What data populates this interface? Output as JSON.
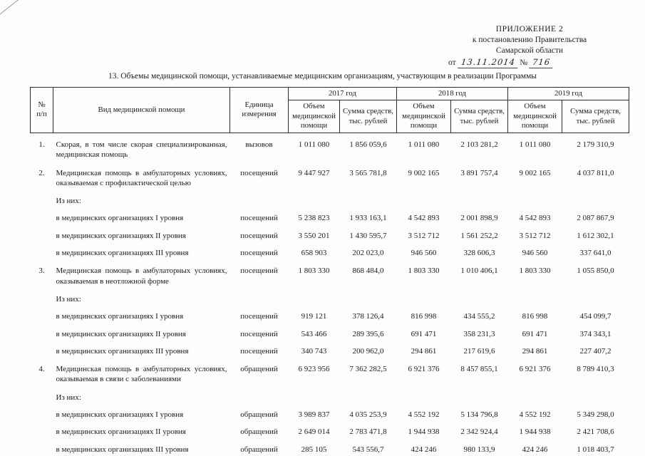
{
  "header": {
    "appendix": "ПРИЛОЖЕНИЕ 2",
    "line2": "к постановлению Правительства",
    "line3": "Самарской области",
    "from_label": "от",
    "date": "13.11.2014",
    "number_sign": "№",
    "number": "716"
  },
  "title": "13. Объемы медицинской помощи, устанавливаемые медицинским организациям, участвующим в реализации Программы",
  "table": {
    "columns": {
      "num": "№\nп/п",
      "type": "Вид медицинской помощи",
      "unit": "Единица измерения",
      "years": [
        "2017 год",
        "2018 год",
        "2019 год"
      ],
      "volume": "Объем медицинской помощи",
      "sum": "Сумма средств, тыс. рублей"
    },
    "rows": [
      {
        "kind": "main",
        "num": "1.",
        "name": "Скорая, в том числе скорая специализированная, медицинская помощь",
        "unit": "вызовов",
        "values": [
          "1 011 080",
          "1 856 059,6",
          "1 011 080",
          "2 103 281,2",
          "1 011 080",
          "2 179 310,9"
        ]
      },
      {
        "kind": "main",
        "num": "2.",
        "name": "Медицинская помощь в амбулаторных условиях, оказываемая с профилактической целью",
        "unit": "посещений",
        "values": [
          "9 447 927",
          "3 565 781,8",
          "9 002 165",
          "3 891 757,4",
          "9 002 165",
          "4 037 811,0"
        ]
      },
      {
        "kind": "label",
        "num": "",
        "name": "Из них:",
        "unit": "",
        "values": [
          "",
          "",
          "",
          "",
          "",
          ""
        ]
      },
      {
        "kind": "sub",
        "num": "",
        "name": "в медицинских организациях I уровня",
        "unit": "посещений",
        "values": [
          "5 238 823",
          "1 933 163,1",
          "4 542 893",
          "2 001 898,9",
          "4 542 893",
          "2 087 867,9"
        ]
      },
      {
        "kind": "sub",
        "num": "",
        "name": "в медицинских организациях II уровня",
        "unit": "посещений",
        "values": [
          "3 550 201",
          "1 430 595,7",
          "3 512 712",
          "1 561 252,2",
          "3 512 712",
          "1 612 302,1"
        ]
      },
      {
        "kind": "sub",
        "num": "",
        "name": "в медицинских организациях III уровня",
        "unit": "посещений",
        "values": [
          "658 903",
          "202 023,0",
          "946 560",
          "328 606,3",
          "946 560",
          "337 641,0"
        ]
      },
      {
        "kind": "main",
        "num": "3.",
        "name": "Медицинская помощь в амбулаторных условиях, оказываемая в неотложной форме",
        "unit": "посещений",
        "values": [
          "1 803 330",
          "868 484,0",
          "1 803 330",
          "1 010 406,1",
          "1 803 330",
          "1 055 850,0"
        ]
      },
      {
        "kind": "label",
        "num": "",
        "name": "Из них:",
        "unit": "",
        "values": [
          "",
          "",
          "",
          "",
          "",
          ""
        ]
      },
      {
        "kind": "sub",
        "num": "",
        "name": "в медицинских организациях I уровня",
        "unit": "посещений",
        "values": [
          "919 121",
          "378 126,4",
          "816 998",
          "434 555,2",
          "816 998",
          "454 099,7"
        ]
      },
      {
        "kind": "sub",
        "num": "",
        "name": "в медицинских организациях II уровня",
        "unit": "посещений",
        "values": [
          "543 466",
          "289 395,6",
          "691 471",
          "358 231,3",
          "691 471",
          "374 343,1"
        ]
      },
      {
        "kind": "sub",
        "num": "",
        "name": "в медицинских организациях III уровня",
        "unit": "посещений",
        "values": [
          "340 743",
          "200 962,0",
          "294 861",
          "217 619,6",
          "294 861",
          "227 407,2"
        ]
      },
      {
        "kind": "main",
        "num": "4.",
        "name": "Медицинская помощь в амбулаторных условиях, оказываемая в связи с заболеваниями",
        "unit": "обращений",
        "values": [
          "6 923 956",
          "7 362 282,5",
          "6 921 376",
          "8 457 855,1",
          "6 921 376",
          "8 789 410,3"
        ]
      },
      {
        "kind": "label",
        "num": "",
        "name": "Из них:",
        "unit": "",
        "values": [
          "",
          "",
          "",
          "",
          "",
          ""
        ]
      },
      {
        "kind": "sub",
        "num": "",
        "name": "в медицинских организациях I уровня",
        "unit": "обращений",
        "values": [
          "3 989 837",
          "4 035 253,9",
          "4 552 192",
          "5 134 796,8",
          "4 552 192",
          "5 349 298,0"
        ]
      },
      {
        "kind": "sub",
        "num": "",
        "name": "в медицинских организациях II уровня",
        "unit": "обращений",
        "values": [
          "2 649 014",
          "2 783 471,8",
          "1 944 938",
          "2 342 924,4",
          "1 944 938",
          "2 421 708,6"
        ]
      },
      {
        "kind": "sub",
        "num": "",
        "name": "в медицинских организациях III уровня",
        "unit": "обращений",
        "values": [
          "285 105",
          "543 556,7",
          "424 246",
          "980 133,9",
          "424 246",
          "1 018 403,7"
        ]
      }
    ]
  }
}
